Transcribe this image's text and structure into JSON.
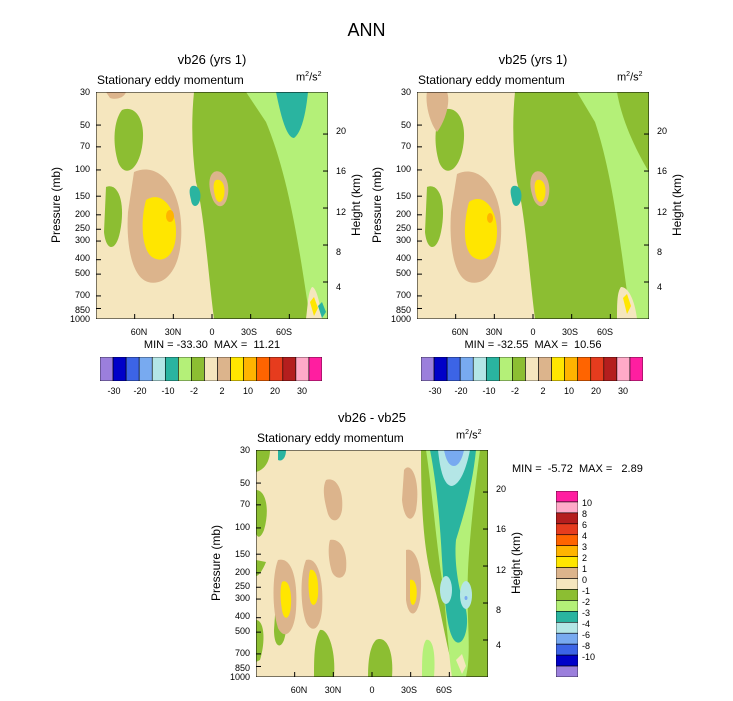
{
  "figure": {
    "title": "ANN"
  },
  "chart_data": [
    {
      "type": "heatmap",
      "title": "vb26 (yrs 1)",
      "subtitle": "Stationary eddy momentum",
      "units": "m2/s2",
      "units_base": "m",
      "units_exp1": "2",
      "units_mid": "/s",
      "units_exp2": "2",
      "ylabel": "Pressure (mb)",
      "y2label": "Height (km)",
      "x_ticks": [
        "60N",
        "30N",
        "0",
        "30S",
        "60S"
      ],
      "x_values": [
        60,
        30,
        0,
        -30,
        -60
      ],
      "xlim": [
        90,
        -90
      ],
      "y_ticks": [
        "30",
        "50",
        "70",
        "100",
        "150",
        "200",
        "250",
        "300",
        "400",
        "500",
        "700",
        "850",
        "1000"
      ],
      "y_values": [
        30,
        50,
        70,
        100,
        150,
        200,
        250,
        300,
        400,
        500,
        700,
        850,
        1000
      ],
      "ylim": [
        30,
        1000
      ],
      "y2_ticks": [
        "20",
        "16",
        "12",
        "8",
        "4"
      ],
      "y2_values": [
        20,
        16,
        12,
        8,
        4
      ],
      "stats_text": "MIN = -33.30  MAX =  11.21",
      "min": -33.3,
      "max": 11.21,
      "levels": [
        "-30",
        "-20",
        "-10",
        "-2",
        "2",
        "10",
        "20",
        "30"
      ],
      "colorbar_colors": [
        "#9b7fdc",
        "#0000c8",
        "#3c64e6",
        "#78aaf0",
        "#b4e6e6",
        "#2ab4a0",
        "#b4f078",
        "#8cbe32",
        "#f5e6be",
        "#dcb48c",
        "#ffe600",
        "#ffb400",
        "#ff6400",
        "#e63c1e",
        "#b41e1e",
        "#ffaac8",
        "#ff1ea0"
      ]
    },
    {
      "type": "heatmap",
      "title": "vb25 (yrs 1)",
      "subtitle": "Stationary eddy momentum",
      "units": "m2/s2",
      "units_base": "m",
      "units_exp1": "2",
      "units_mid": "/s",
      "units_exp2": "2",
      "ylabel": "Pressure (mb)",
      "y2label": "Height (km)",
      "x_ticks": [
        "60N",
        "30N",
        "0",
        "30S",
        "60S"
      ],
      "x_values": [
        60,
        30,
        0,
        -30,
        -60
      ],
      "xlim": [
        90,
        -90
      ],
      "y_ticks": [
        "30",
        "50",
        "70",
        "100",
        "150",
        "200",
        "250",
        "300",
        "400",
        "500",
        "700",
        "850",
        "1000"
      ],
      "y_values": [
        30,
        50,
        70,
        100,
        150,
        200,
        250,
        300,
        400,
        500,
        700,
        850,
        1000
      ],
      "ylim": [
        30,
        1000
      ],
      "y2_ticks": [
        "20",
        "16",
        "12",
        "8",
        "4"
      ],
      "y2_values": [
        20,
        16,
        12,
        8,
        4
      ],
      "stats_text": "MIN = -32.55  MAX =  10.56",
      "min": -32.55,
      "max": 10.56,
      "levels": [
        "-30",
        "-20",
        "-10",
        "-2",
        "2",
        "10",
        "20",
        "30"
      ],
      "colorbar_colors": [
        "#9b7fdc",
        "#0000c8",
        "#3c64e6",
        "#78aaf0",
        "#b4e6e6",
        "#2ab4a0",
        "#b4f078",
        "#8cbe32",
        "#f5e6be",
        "#dcb48c",
        "#ffe600",
        "#ffb400",
        "#ff6400",
        "#e63c1e",
        "#b41e1e",
        "#ffaac8",
        "#ff1ea0"
      ]
    },
    {
      "type": "heatmap",
      "title": "vb26 - vb25",
      "subtitle": "Stationary eddy momentum",
      "units": "m2/s2",
      "units_base": "m",
      "units_exp1": "2",
      "units_mid": "/s",
      "units_exp2": "2",
      "ylabel": "Pressure (mb)",
      "y2label": "Height (km)",
      "x_ticks": [
        "60N",
        "30N",
        "0",
        "30S",
        "60S"
      ],
      "x_values": [
        60,
        30,
        0,
        -30,
        -60
      ],
      "xlim": [
        90,
        -90
      ],
      "y_ticks": [
        "30",
        "50",
        "70",
        "100",
        "150",
        "200",
        "250",
        "300",
        "400",
        "500",
        "700",
        "850",
        "1000"
      ],
      "y_values": [
        30,
        50,
        70,
        100,
        150,
        200,
        250,
        300,
        400,
        500,
        700,
        850,
        1000
      ],
      "ylim": [
        30,
        1000
      ],
      "y2_ticks": [
        "20",
        "16",
        "12",
        "8",
        "4"
      ],
      "y2_values": [
        20,
        16,
        12,
        8,
        4
      ],
      "stats_text": "MIN =  -5.72  MAX =   2.89",
      "min": -5.72,
      "max": 2.89,
      "levels": [
        "10",
        "8",
        "6",
        "4",
        "3",
        "2",
        "1",
        "0",
        "-1",
        "-2",
        "-3",
        "-4",
        "-6",
        "-8",
        "-10"
      ],
      "colorbar_colors": [
        "#ff1ea0",
        "#ffaac8",
        "#b41e1e",
        "#e63c1e",
        "#ff6400",
        "#ffb400",
        "#ffe600",
        "#dcb48c",
        "#f5e6be",
        "#8cbe32",
        "#b4f078",
        "#2ab4a0",
        "#b4e6e6",
        "#78aaf0",
        "#3c64e6",
        "#0000c8",
        "#9b7fdc"
      ]
    }
  ]
}
